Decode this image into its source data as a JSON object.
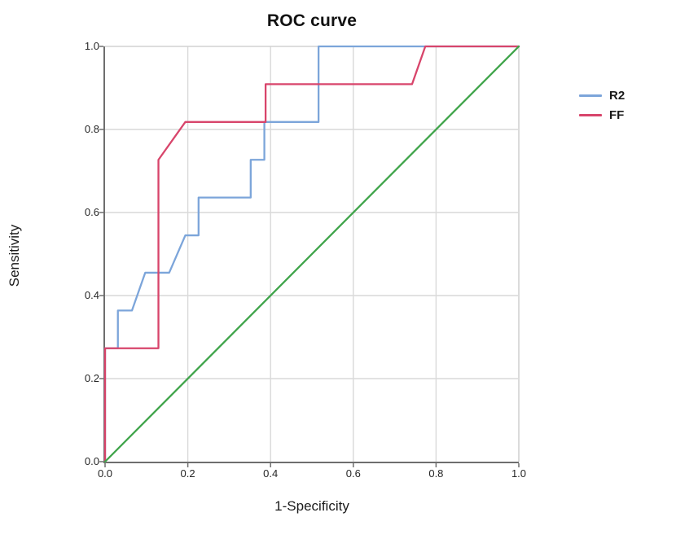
{
  "chart_data": {
    "type": "line",
    "title": "ROC curve",
    "xlabel": "1-Specificity",
    "ylabel": "Sensitivity",
    "xlim": [
      0.0,
      1.0
    ],
    "ylim": [
      0.0,
      1.0
    ],
    "xticks": [
      0.0,
      0.2,
      0.4,
      0.6,
      0.8,
      1.0
    ],
    "yticks": [
      0.0,
      0.2,
      0.4,
      0.6,
      0.8,
      1.0
    ],
    "grid": true,
    "legend_position": "right",
    "series": [
      {
        "name": "R2",
        "color": "#7CA5DA",
        "in_legend": true,
        "points": [
          [
            0.0,
            0.0
          ],
          [
            0.0,
            0.273
          ],
          [
            0.031,
            0.273
          ],
          [
            0.031,
            0.364
          ],
          [
            0.065,
            0.364
          ],
          [
            0.097,
            0.455
          ],
          [
            0.155,
            0.455
          ],
          [
            0.194,
            0.545
          ],
          [
            0.226,
            0.545
          ],
          [
            0.226,
            0.636
          ],
          [
            0.352,
            0.636
          ],
          [
            0.352,
            0.727
          ],
          [
            0.385,
            0.727
          ],
          [
            0.385,
            0.818
          ],
          [
            0.516,
            0.818
          ],
          [
            0.516,
            1.0
          ],
          [
            1.0,
            1.0
          ]
        ]
      },
      {
        "name": "FF",
        "color": "#D8456B",
        "in_legend": true,
        "points": [
          [
            0.0,
            0.0
          ],
          [
            0.0,
            0.273
          ],
          [
            0.129,
            0.273
          ],
          [
            0.129,
            0.727
          ],
          [
            0.194,
            0.818
          ],
          [
            0.388,
            0.818
          ],
          [
            0.388,
            0.909
          ],
          [
            0.742,
            0.909
          ],
          [
            0.774,
            1.0
          ],
          [
            1.0,
            1.0
          ]
        ]
      },
      {
        "name": "reference-diagonal",
        "color": "#3FA44A",
        "in_legend": false,
        "points": [
          [
            0.0,
            0.0
          ],
          [
            1.0,
            1.0
          ]
        ]
      }
    ],
    "colors": {
      "grid": "#D9D9D9",
      "frame": "#D2D2D2",
      "axis": "#6E6E6E",
      "tick_text": "#262626",
      "title_text": "#111111"
    }
  }
}
